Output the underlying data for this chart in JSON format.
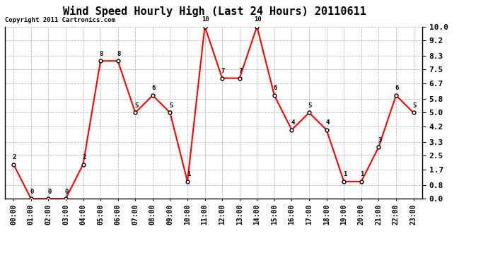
{
  "title": "Wind Speed Hourly High (Last 24 Hours) 20110611",
  "copyright": "Copyright 2011 Cartronics.com",
  "hours": [
    "00:00",
    "01:00",
    "02:00",
    "03:00",
    "04:00",
    "05:00",
    "06:00",
    "07:00",
    "08:00",
    "09:00",
    "10:00",
    "11:00",
    "12:00",
    "13:00",
    "14:00",
    "15:00",
    "16:00",
    "17:00",
    "18:00",
    "19:00",
    "20:00",
    "21:00",
    "22:00",
    "23:00"
  ],
  "values": [
    2,
    0,
    0,
    0,
    2,
    8,
    8,
    5,
    6,
    5,
    1,
    10,
    7,
    7,
    10,
    6,
    4,
    5,
    4,
    1,
    1,
    3,
    6,
    5
  ],
  "ylim": [
    0.0,
    10.0
  ],
  "yticks": [
    0.0,
    0.8,
    1.7,
    2.5,
    3.3,
    4.2,
    5.0,
    5.8,
    6.7,
    7.5,
    8.3,
    9.2,
    10.0
  ],
  "line_color": "#ff0000",
  "marker_color": "#000000",
  "bg_color": "#ffffff",
  "grid_color": "#bbbbbb",
  "title_fontsize": 11,
  "copyright_fontsize": 6.5,
  "tick_fontsize": 7,
  "ytick_fontsize": 8
}
